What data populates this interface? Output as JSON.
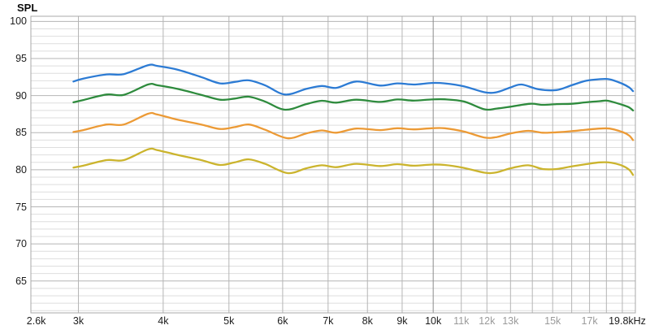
{
  "title": "SPL",
  "colors": {
    "background": "#ffffff",
    "grid_minor": "#dedede",
    "grid_major": "#b5b5b5",
    "grid_emphasis": "#8c8c8c",
    "plot_border": "#a8a8a8",
    "label": "#1c1c1c",
    "label_muted": "#9a9a9a"
  },
  "chart_data": {
    "type": "line",
    "title": "SPL",
    "legend": "none",
    "grid": true,
    "x_axis": {
      "scale": "log",
      "unit": "kHz",
      "range_khz": [
        2.553,
        19.86
      ],
      "tick_labels": [
        {
          "text": "2.6k",
          "khz": 2.6,
          "muted": false
        },
        {
          "text": "3k",
          "khz": 3,
          "muted": false
        },
        {
          "text": "4k",
          "khz": 4,
          "muted": false
        },
        {
          "text": "5k",
          "khz": 5,
          "muted": false
        },
        {
          "text": "6k",
          "khz": 6,
          "muted": false
        },
        {
          "text": "7k",
          "khz": 7,
          "muted": false
        },
        {
          "text": "8k",
          "khz": 8,
          "muted": false
        },
        {
          "text": "9k",
          "khz": 9,
          "muted": false
        },
        {
          "text": "10k",
          "khz": 10,
          "muted": false
        },
        {
          "text": "11k",
          "khz": 11,
          "muted": true
        },
        {
          "text": "12k",
          "khz": 12,
          "muted": true
        },
        {
          "text": "13k",
          "khz": 13,
          "muted": true
        },
        {
          "text": "15k",
          "khz": 15,
          "muted": true
        },
        {
          "text": "17k",
          "khz": 17,
          "muted": true
        },
        {
          "text": "19.8kHz",
          "khz": 19.8,
          "muted": false
        }
      ],
      "gridlines_khz": [
        3,
        4,
        5,
        6,
        7,
        8,
        9,
        10,
        11,
        12,
        13,
        14,
        15,
        16,
        17,
        18,
        19
      ],
      "emphasized_gridline_khz": 10
    },
    "y_axis": {
      "label": "SPL",
      "unit": "dB",
      "range_db": [
        60.7,
        100.7
      ],
      "major_tick_labels": [
        100,
        95,
        90,
        85,
        80,
        75,
        70,
        65
      ],
      "minor_step_db": 1,
      "major_step_db": 5
    },
    "series": [
      {
        "name": "trace-1-blue",
        "color": "#2c7bd4",
        "points_khz_db": [
          [
            2.95,
            91.9
          ],
          [
            3.05,
            92.3
          ],
          [
            3.3,
            92.85
          ],
          [
            3.5,
            92.9
          ],
          [
            3.8,
            94.1
          ],
          [
            3.92,
            94.0
          ],
          [
            4.2,
            93.5
          ],
          [
            4.55,
            92.5
          ],
          [
            4.85,
            91.65
          ],
          [
            5.1,
            91.85
          ],
          [
            5.35,
            92.05
          ],
          [
            5.65,
            91.4
          ],
          [
            6.05,
            90.15
          ],
          [
            6.5,
            90.9
          ],
          [
            6.85,
            91.3
          ],
          [
            7.2,
            91.05
          ],
          [
            7.7,
            91.9
          ],
          [
            8.35,
            91.35
          ],
          [
            8.85,
            91.65
          ],
          [
            9.35,
            91.5
          ],
          [
            9.95,
            91.7
          ],
          [
            10.4,
            91.65
          ],
          [
            11.1,
            91.25
          ],
          [
            11.9,
            90.45
          ],
          [
            12.4,
            90.45
          ],
          [
            13.0,
            91.1
          ],
          [
            13.5,
            91.5
          ],
          [
            14.3,
            90.85
          ],
          [
            15.2,
            90.75
          ],
          [
            16.0,
            91.4
          ],
          [
            16.8,
            92.0
          ],
          [
            17.5,
            92.2
          ],
          [
            18.2,
            92.2
          ],
          [
            19.0,
            91.6
          ],
          [
            19.45,
            91.1
          ],
          [
            19.7,
            90.6
          ]
        ]
      },
      {
        "name": "trace-2-green",
        "color": "#2e8b3d",
        "points_khz_db": [
          [
            2.95,
            89.1
          ],
          [
            3.05,
            89.4
          ],
          [
            3.3,
            90.15
          ],
          [
            3.5,
            90.1
          ],
          [
            3.8,
            91.5
          ],
          [
            3.92,
            91.4
          ],
          [
            4.2,
            90.9
          ],
          [
            4.55,
            90.1
          ],
          [
            4.85,
            89.45
          ],
          [
            5.1,
            89.6
          ],
          [
            5.35,
            89.85
          ],
          [
            5.65,
            89.2
          ],
          [
            6.05,
            88.1
          ],
          [
            6.5,
            88.85
          ],
          [
            6.85,
            89.3
          ],
          [
            7.2,
            89.05
          ],
          [
            7.7,
            89.45
          ],
          [
            8.35,
            89.15
          ],
          [
            8.85,
            89.48
          ],
          [
            9.35,
            89.33
          ],
          [
            9.95,
            89.48
          ],
          [
            10.4,
            89.5
          ],
          [
            11.1,
            89.2
          ],
          [
            11.9,
            88.15
          ],
          [
            12.4,
            88.25
          ],
          [
            13.0,
            88.5
          ],
          [
            13.9,
            88.9
          ],
          [
            14.5,
            88.75
          ],
          [
            15.2,
            88.85
          ],
          [
            16.0,
            88.9
          ],
          [
            16.8,
            89.1
          ],
          [
            17.6,
            89.25
          ],
          [
            18.1,
            89.3
          ],
          [
            19.0,
            88.75
          ],
          [
            19.45,
            88.4
          ],
          [
            19.7,
            88.0
          ]
        ]
      },
      {
        "name": "trace-3-orange",
        "color": "#ec9a35",
        "points_khz_db": [
          [
            2.95,
            85.1
          ],
          [
            3.05,
            85.35
          ],
          [
            3.3,
            86.1
          ],
          [
            3.5,
            86.1
          ],
          [
            3.8,
            87.55
          ],
          [
            3.92,
            87.45
          ],
          [
            4.2,
            86.75
          ],
          [
            4.55,
            86.1
          ],
          [
            4.85,
            85.5
          ],
          [
            5.1,
            85.75
          ],
          [
            5.35,
            86.1
          ],
          [
            5.65,
            85.4
          ],
          [
            6.1,
            84.25
          ],
          [
            6.5,
            84.9
          ],
          [
            6.85,
            85.3
          ],
          [
            7.2,
            85.0
          ],
          [
            7.7,
            85.55
          ],
          [
            8.35,
            85.35
          ],
          [
            8.85,
            85.6
          ],
          [
            9.35,
            85.45
          ],
          [
            9.95,
            85.6
          ],
          [
            10.4,
            85.6
          ],
          [
            11.1,
            85.15
          ],
          [
            11.9,
            84.35
          ],
          [
            12.4,
            84.4
          ],
          [
            13.0,
            84.9
          ],
          [
            13.8,
            85.25
          ],
          [
            14.5,
            85.0
          ],
          [
            15.2,
            85.05
          ],
          [
            16.0,
            85.2
          ],
          [
            16.8,
            85.4
          ],
          [
            17.6,
            85.55
          ],
          [
            18.2,
            85.55
          ],
          [
            19.0,
            85.1
          ],
          [
            19.45,
            84.6
          ],
          [
            19.7,
            84.0
          ]
        ]
      },
      {
        "name": "trace-4-yellow",
        "color": "#cbb42d",
        "points_khz_db": [
          [
            2.95,
            80.3
          ],
          [
            3.05,
            80.55
          ],
          [
            3.3,
            81.3
          ],
          [
            3.5,
            81.3
          ],
          [
            3.8,
            82.75
          ],
          [
            3.92,
            82.65
          ],
          [
            4.2,
            82.0
          ],
          [
            4.55,
            81.3
          ],
          [
            4.85,
            80.65
          ],
          [
            5.1,
            81.0
          ],
          [
            5.35,
            81.4
          ],
          [
            5.65,
            80.8
          ],
          [
            6.1,
            79.55
          ],
          [
            6.5,
            80.2
          ],
          [
            6.85,
            80.6
          ],
          [
            7.2,
            80.35
          ],
          [
            7.7,
            80.8
          ],
          [
            8.35,
            80.5
          ],
          [
            8.85,
            80.75
          ],
          [
            9.35,
            80.55
          ],
          [
            9.95,
            80.7
          ],
          [
            10.4,
            80.65
          ],
          [
            11.1,
            80.25
          ],
          [
            11.9,
            79.6
          ],
          [
            12.4,
            79.65
          ],
          [
            13.0,
            80.2
          ],
          [
            13.8,
            80.6
          ],
          [
            14.5,
            80.1
          ],
          [
            15.2,
            80.1
          ],
          [
            16.0,
            80.45
          ],
          [
            16.8,
            80.75
          ],
          [
            17.6,
            81.0
          ],
          [
            18.3,
            80.95
          ],
          [
            19.0,
            80.55
          ],
          [
            19.45,
            80.0
          ],
          [
            19.7,
            79.3
          ]
        ]
      }
    ]
  }
}
